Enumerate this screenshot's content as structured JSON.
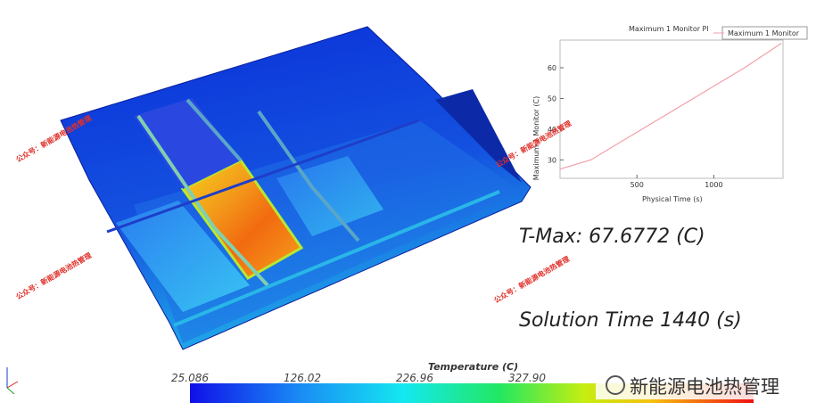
{
  "chart_data": {
    "type": "line",
    "title": "Maximum 1 Monitor Pl",
    "xlabel": "Physical Time (s)",
    "ylabel": "Maximum 1 Monitor (C)",
    "x": [
      0,
      200,
      400,
      600,
      800,
      1000,
      1200,
      1440
    ],
    "series": [
      {
        "name": "Maximum 1 Monitor",
        "color": "#f2a0a8",
        "values": [
          27,
          30,
          36,
          42,
          48,
          54,
          60,
          68
        ]
      }
    ],
    "xlim": [
      0,
      1450
    ],
    "ylim": [
      24,
      69
    ],
    "xticks": [
      500,
      1000
    ],
    "yticks": [
      30,
      40,
      50,
      60
    ]
  },
  "t_max": "T-Max: 67.6772 (C)",
  "solution_time": "Solution Time 1440 (s)",
  "colorbar": {
    "title": "Temperature (C)",
    "labels": [
      "25.086",
      "126.02",
      "226.96",
      "327.90"
    ]
  },
  "watermarks": [
    "公众号：新能源电池热管理",
    "公众号：新能源电池热管理",
    "公众号：新能源电池热管理",
    "公众号：新能源电池热管理"
  ],
  "logo": "新能源电池热管理"
}
